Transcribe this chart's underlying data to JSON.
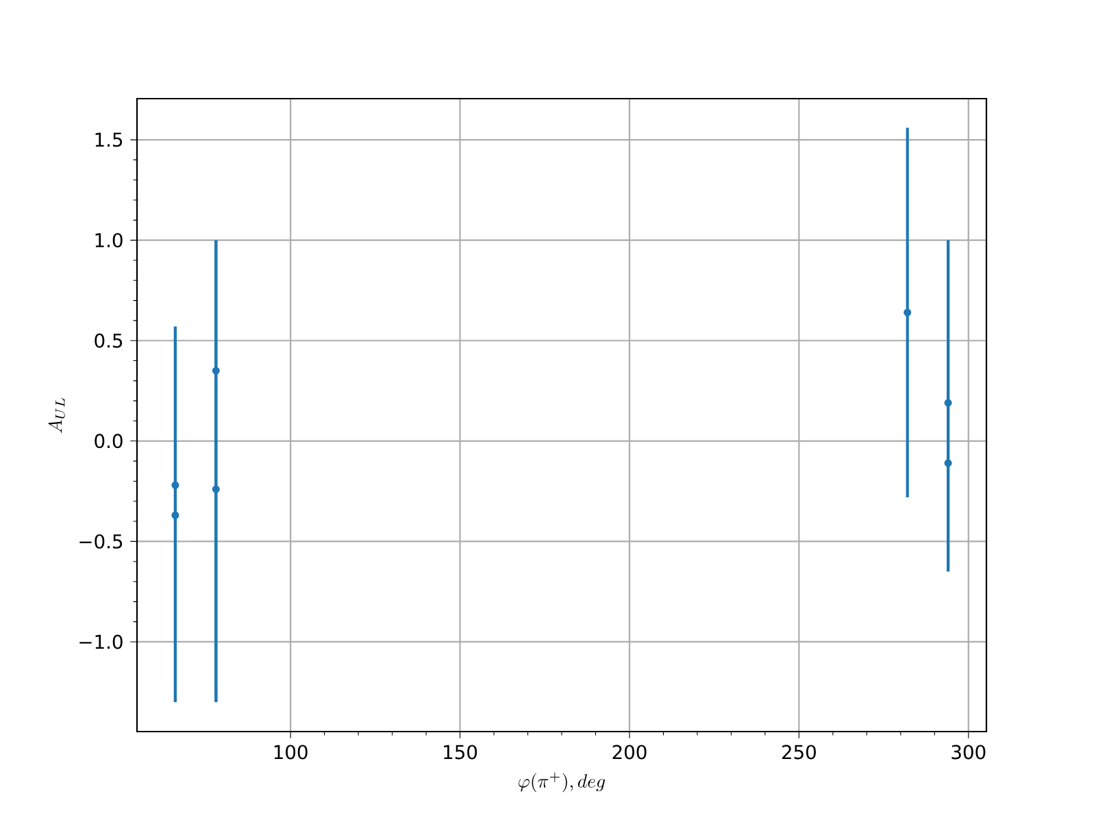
{
  "chart_data": {
    "type": "scatter",
    "xlabel": "\\varphi(\\pi^+), deg",
    "ylabel": "A_{UL}",
    "x": [
      66,
      66,
      78,
      78,
      282,
      294,
      294
    ],
    "series": [
      {
        "color": "#1f77b4",
        "values": [
          -0.22,
          -0.37,
          0.35,
          -0.24,
          0.64,
          0.19,
          -0.11
        ],
        "errors": [
          [
            -1.3,
            0.57
          ],
          [
            -1.3,
            0.57
          ],
          [
            -1.3,
            1.0
          ],
          [
            -1.3,
            1.0
          ],
          [
            -0.28,
            1.56
          ],
          [
            -0.65,
            1.0
          ],
          [
            -0.65,
            1.0
          ]
        ]
      }
    ],
    "xlim": [
      54.7,
      305.3
    ],
    "ylim": [
      -1.447,
      1.705
    ],
    "xticks": [
      100,
      150,
      200,
      250,
      300
    ],
    "yticks": [
      {
        "value": -1.0,
        "label": "−1.0"
      },
      {
        "value": -0.5,
        "label": "−0.5"
      },
      {
        "value": 0.0,
        "label": "0.0"
      },
      {
        "value": 0.5,
        "label": "0.5"
      },
      {
        "value": 1.0,
        "label": "1.0"
      },
      {
        "value": 1.5,
        "label": "1.5"
      }
    ],
    "grid": true,
    "marker": "circle"
  }
}
